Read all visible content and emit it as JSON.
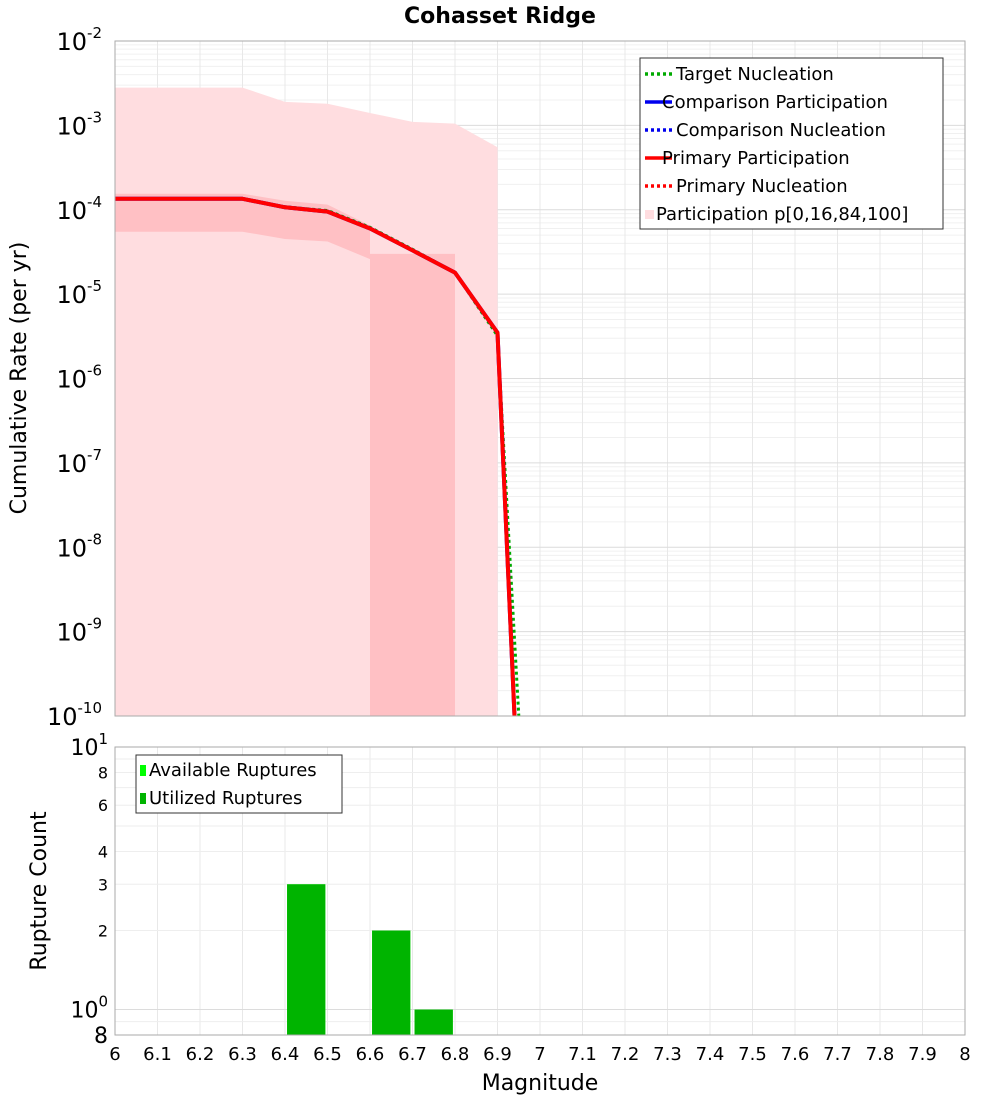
{
  "chart_data": [
    {
      "type": "line",
      "title": "Cohasset Ridge",
      "xlabel": "",
      "ylabel": "Cumulative Rate (per yr)",
      "yscale": "log",
      "xlim": [
        6,
        8
      ],
      "ylim": [
        1e-10,
        0.01
      ],
      "grid": true,
      "legend_position": "top-right",
      "y_ticks": [
        {
          "base": "10",
          "exp": "-10"
        },
        {
          "base": "10",
          "exp": "-9"
        },
        {
          "base": "10",
          "exp": "-8"
        },
        {
          "base": "10",
          "exp": "-7"
        },
        {
          "base": "10",
          "exp": "-6"
        },
        {
          "base": "10",
          "exp": "-5"
        },
        {
          "base": "10",
          "exp": "-4"
        },
        {
          "base": "10",
          "exp": "-3"
        },
        {
          "base": "10",
          "exp": "-2"
        }
      ],
      "series": [
        {
          "name": "Target Nucleation",
          "color": "#00aa00",
          "style": "dotted",
          "x": [
            6.0,
            6.3,
            6.4,
            6.5,
            6.6,
            6.7,
            6.8,
            6.9,
            6.95
          ],
          "y": [
            0.000135,
            0.000135,
            0.000108,
            9.8e-05,
            6.2e-05,
            3.4e-05,
            1.8e-05,
            3.2e-06,
            1e-10
          ]
        },
        {
          "name": "Comparison Participation",
          "color": "#0000ee",
          "style": "solid",
          "x": [
            6.0,
            6.3,
            6.4,
            6.5,
            6.6,
            6.7,
            6.8,
            6.9,
            6.94
          ],
          "y": [
            0.000135,
            0.000135,
            0.000107,
            9.5e-05,
            6e-05,
            3.3e-05,
            1.8e-05,
            3.5e-06,
            1e-10
          ]
        },
        {
          "name": "Comparison Nucleation",
          "color": "#0000ee",
          "style": "dotted",
          "x": [
            6.0,
            6.3,
            6.4,
            6.5,
            6.6,
            6.7,
            6.8,
            6.9,
            6.94
          ],
          "y": [
            0.000135,
            0.000135,
            0.000107,
            9.5e-05,
            6e-05,
            3.3e-05,
            1.8e-05,
            3.5e-06,
            1e-10
          ]
        },
        {
          "name": "Primary Participation",
          "color": "#ff0000",
          "style": "solid",
          "x": [
            6.0,
            6.3,
            6.4,
            6.5,
            6.6,
            6.7,
            6.8,
            6.9,
            6.94
          ],
          "y": [
            0.000135,
            0.000135,
            0.000107,
            9.5e-05,
            6e-05,
            3.3e-05,
            1.8e-05,
            3.5e-06,
            1e-10
          ]
        },
        {
          "name": "Primary Nucleation",
          "color": "#ff0000",
          "style": "dotted",
          "x": [
            6.0,
            6.3,
            6.4,
            6.5,
            6.6,
            6.7,
            6.8,
            6.9,
            6.94
          ],
          "y": [
            0.000135,
            0.000135,
            0.000107,
            9.5e-05,
            6e-05,
            3.3e-05,
            1.8e-05,
            3.5e-06,
            1e-10
          ]
        }
      ],
      "bands": [
        {
          "name": "Participation p[0,16,84,100]",
          "color": "#ffdde0",
          "x": [
            6.0,
            6.3,
            6.4,
            6.5,
            6.6,
            6.7,
            6.8,
            6.9,
            6.9
          ],
          "upper": [
            0.0028,
            0.0028,
            0.0019,
            0.0018,
            0.0014,
            0.0011,
            0.00105,
            0.00055,
            1e-10
          ],
          "lower": [
            1e-10,
            1e-10,
            1e-10,
            1e-10,
            1e-10,
            1e-10,
            1e-10,
            1e-10,
            1e-10
          ]
        },
        {
          "name": "",
          "color": "#ffc0c4",
          "x": [
            6.0,
            6.3,
            6.4,
            6.5,
            6.6,
            6.6,
            6.8,
            6.8
          ],
          "upper": [
            0.000155,
            0.000155,
            0.000128,
            0.000115,
            6.5e-05,
            3e-05,
            3e-05,
            1e-10
          ],
          "lower": [
            5.5e-05,
            5.5e-05,
            4.5e-05,
            4.2e-05,
            2.6e-05,
            1e-10,
            1e-10,
            1e-10
          ]
        }
      ]
    },
    {
      "type": "bar",
      "title": "",
      "xlabel": "Magnitude",
      "ylabel": "Rupture Count",
      "yscale": "log",
      "xlim": [
        6,
        8
      ],
      "ylim": [
        0.8,
        10
      ],
      "grid": true,
      "legend_position": "top-left",
      "x_ticks": [
        "6",
        "6.1",
        "6.2",
        "6.3",
        "6.4",
        "6.5",
        "6.6",
        "6.7",
        "6.8",
        "6.9",
        "7",
        "7.1",
        "7.2",
        "7.3",
        "7.4",
        "7.5",
        "7.6",
        "7.7",
        "7.8",
        "7.9",
        "8"
      ],
      "y_ticks": [
        {
          "value": 0.8,
          "label": "8",
          "exp": ""
        },
        {
          "value": 1,
          "label": "10",
          "exp": "0"
        },
        {
          "value": 2,
          "label": "2",
          "exp": ""
        },
        {
          "value": 3,
          "label": "3",
          "exp": ""
        },
        {
          "value": 4,
          "label": "4",
          "exp": ""
        },
        {
          "value": 6,
          "label": "6",
          "exp": ""
        },
        {
          "value": 8,
          "label": "8",
          "exp": ""
        },
        {
          "value": 10,
          "label": "10",
          "exp": "1"
        }
      ],
      "series": [
        {
          "name": "Available Ruptures",
          "color": "#00ff00",
          "x": [
            6.45,
            6.65,
            6.75
          ],
          "values": [
            3,
            2,
            1
          ]
        },
        {
          "name": "Utilized Ruptures",
          "color": "#00b400",
          "x": [
            6.45,
            6.65,
            6.75
          ],
          "values": [
            3,
            2,
            1
          ]
        }
      ],
      "bar_width": 0.09
    }
  ]
}
